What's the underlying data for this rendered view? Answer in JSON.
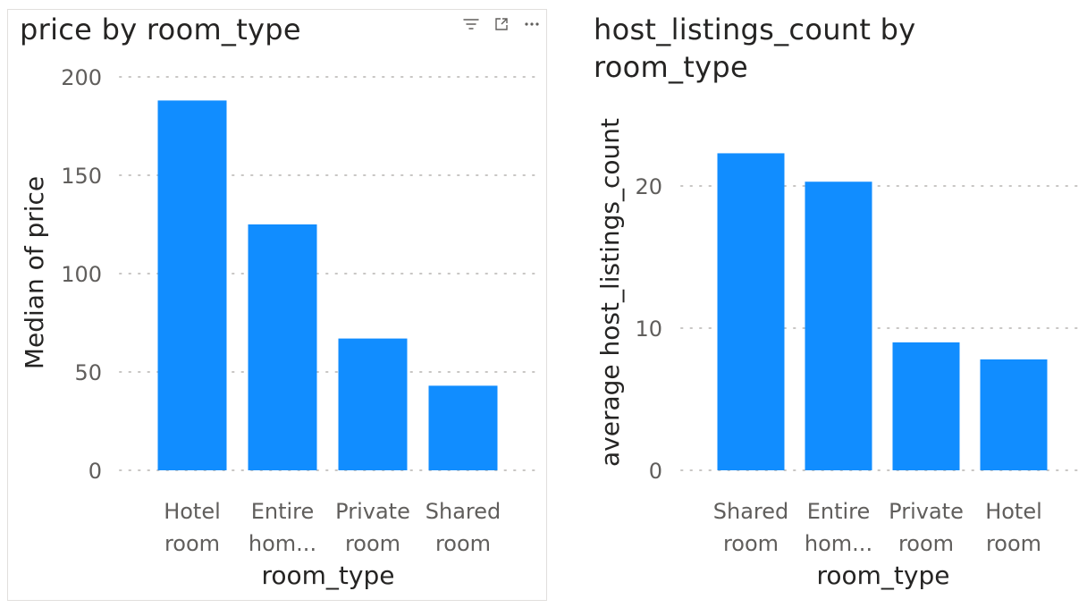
{
  "colors": {
    "bar": "#118DFF",
    "grid": "#c8c6c4",
    "tick_text": "#605e5c",
    "title_text": "#252423"
  },
  "header_icons": [
    "filter-icon",
    "focus-mode-icon",
    "more-options-icon"
  ],
  "chart_data": [
    {
      "type": "bar",
      "title": "price by room_type",
      "xlabel": "room_type",
      "ylabel": "Median of price",
      "categories": [
        [
          "Hotel",
          "room"
        ],
        [
          "Entire",
          "hom..."
        ],
        [
          "Private",
          "room"
        ],
        [
          "Shared",
          "room"
        ]
      ],
      "values": [
        188,
        125,
        67,
        43
      ],
      "ylim": [
        0,
        200
      ],
      "yticks": [
        "0",
        "50",
        "100",
        "150",
        "200"
      ],
      "grid": true
    },
    {
      "type": "bar",
      "title": "host_listings_count by room_type",
      "xlabel": "room_type",
      "ylabel": "average host_listings_count",
      "categories": [
        [
          "Shared",
          "room"
        ],
        [
          "Entire",
          "hom..."
        ],
        [
          "Private",
          "room"
        ],
        [
          "Hotel",
          "room"
        ]
      ],
      "values": [
        22.3,
        20.3,
        9.0,
        7.8
      ],
      "ylim": [
        0,
        20
      ],
      "yticks": [
        "0",
        "10",
        "20"
      ],
      "grid": true
    }
  ]
}
